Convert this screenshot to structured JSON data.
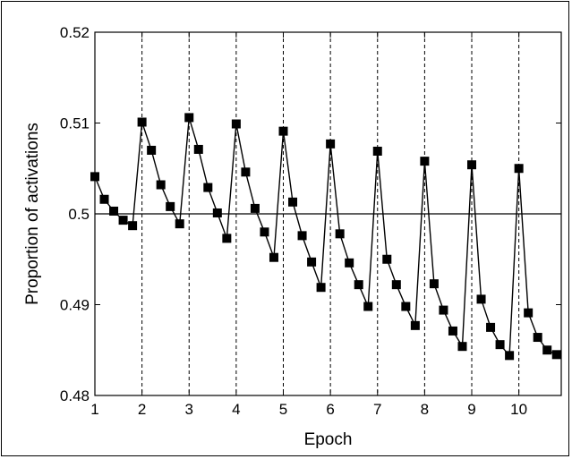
{
  "chart_data": {
    "type": "line",
    "title": "",
    "xlabel": "Epoch",
    "ylabel": "Proportion of activations",
    "xlim": [
      1,
      10.9
    ],
    "ylim": [
      0.48,
      0.52
    ],
    "xticks": [
      1,
      2,
      3,
      4,
      5,
      6,
      7,
      8,
      9,
      10
    ],
    "xtick_labels": [
      "1",
      "2",
      "3",
      "4",
      "5",
      "6",
      "7",
      "8",
      "9",
      "10"
    ],
    "yticks": [
      0.48,
      0.49,
      0.5,
      0.51,
      0.52
    ],
    "ytick_labels": [
      "0.48",
      "0.49",
      "0.5",
      "0.51",
      "0.52"
    ],
    "reference_line_y": 0.5,
    "epoch_separators": [
      2,
      3,
      4,
      5,
      6,
      7,
      8,
      9,
      10
    ],
    "grid": false,
    "legend": "none",
    "marker": "square",
    "line_color": "#000000",
    "series": [
      {
        "x": [
          1.0,
          1.2,
          1.4,
          1.6,
          1.8,
          2.0,
          2.2,
          2.4,
          2.6,
          2.8,
          3.0,
          3.2,
          3.4,
          3.6,
          3.8,
          4.0,
          4.2,
          4.4,
          4.6,
          4.8,
          5.0,
          5.2,
          5.4,
          5.6,
          5.8,
          6.0,
          6.2,
          6.4,
          6.6,
          6.8,
          7.0,
          7.2,
          7.4,
          7.6,
          7.8,
          8.0,
          8.2,
          8.4,
          8.6,
          8.8,
          9.0,
          9.2,
          9.4,
          9.6,
          9.8,
          10.0,
          10.2,
          10.4,
          10.6,
          10.8
        ],
        "y": [
          0.5041,
          0.5016,
          0.5003,
          0.4993,
          0.4987,
          0.5101,
          0.507,
          0.5032,
          0.5008,
          0.4989,
          0.5106,
          0.5071,
          0.5029,
          0.5001,
          0.4973,
          0.5099,
          0.5046,
          0.5006,
          0.498,
          0.4952,
          0.5091,
          0.5013,
          0.4976,
          0.4947,
          0.4919,
          0.5077,
          0.4978,
          0.4946,
          0.4922,
          0.4898,
          0.5069,
          0.495,
          0.4922,
          0.4898,
          0.4877,
          0.5058,
          0.4923,
          0.4894,
          0.4871,
          0.4854,
          0.5054,
          0.4906,
          0.4875,
          0.4856,
          0.4844,
          0.505,
          0.4891,
          0.4864,
          0.485,
          0.4845
        ]
      }
    ]
  }
}
